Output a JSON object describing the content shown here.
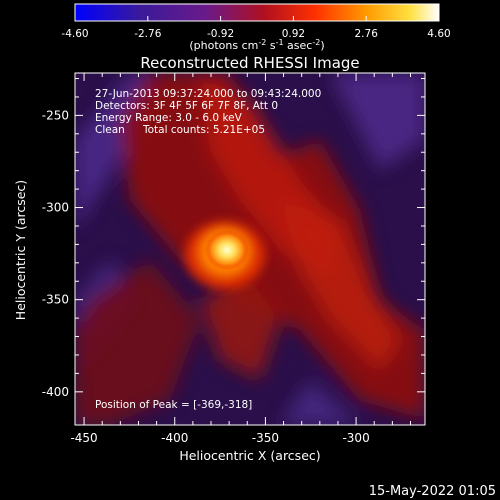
{
  "colorbar": {
    "ticks": [
      "-4.60",
      "-2.76",
      "-0.92",
      "0.92",
      "2.76",
      "4.60"
    ],
    "units_main": "(photons cm",
    "units_exp1": "-2",
    "units_mid": " s",
    "units_exp2": "-1",
    "units_end": " asec",
    "units_exp3": "-2",
    "units_close": ")",
    "range": [
      -4.6,
      4.6
    ]
  },
  "title": "Reconstructed RHESSI Image",
  "annotations": {
    "time_range": "27-Jun-2013 09:37:24.000 to 09:43:24.000",
    "detectors": "Detectors: 3F 4F 5F 6F 7F 8F, Att 0",
    "energy_range": "Energy Range: 3.0 - 6.0 keV",
    "method": "Clean",
    "total_counts": "Total counts: 5.21E+05",
    "peak_position": "Position of Peak = [-369,-318]"
  },
  "axes": {
    "xlabel": "Heliocentric X (arcsec)",
    "ylabel": "Heliocentric Y (arcsec)",
    "x_ticks": [
      "-450",
      "-400",
      "-350",
      "-300"
    ],
    "y_ticks": [
      "-250",
      "-300",
      "-350",
      "-400"
    ],
    "x_tick_values": [
      -450,
      -400,
      -350,
      -300
    ],
    "y_tick_values": [
      -250,
      -300,
      -350,
      -400
    ],
    "xlim": [
      -455,
      -262
    ],
    "ylim": [
      -418,
      -227
    ]
  },
  "footer": {
    "timestamp": "15-May-2022 01:05"
  },
  "colors": {
    "background": "#000000",
    "foreground": "#ffffff",
    "low": "#3a1a78",
    "mid": "#a01010",
    "high": "#ffff80"
  }
}
